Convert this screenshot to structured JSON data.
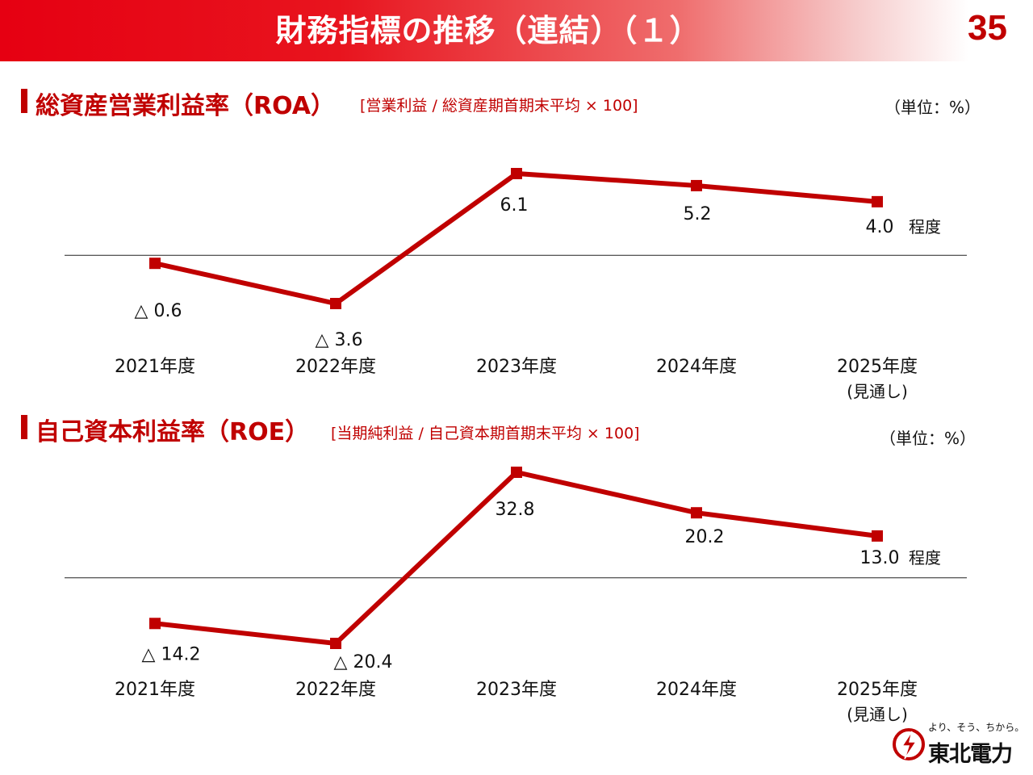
{
  "header": {
    "title": "財務指標の推移（連結）（１）",
    "page_number": "35"
  },
  "colors": {
    "accent": "#c00000",
    "title_bar": "#e60012",
    "line": "#c00000"
  },
  "roa": {
    "title": "総資産営業利益率（ROA）",
    "formula": "[営業利益 / 総資産期首期末平均 × 100]",
    "unit": "（単位：%）"
  },
  "roe": {
    "title": "自己資本利益率（ROE）",
    "formula": "[当期純利益 / 自己資本期首期末平均 × 100]",
    "unit": "（単位：%）"
  },
  "logo": {
    "tagline": "より、そう、ちから。",
    "name": "東北電力",
    "icon": "tohoku-electric-logo-icon"
  },
  "chart_data": [
    {
      "type": "line",
      "title": "総資産営業利益率（ROA）",
      "categories": [
        "2021年度",
        "2022年度",
        "2023年度",
        "2024年度",
        "2025年度"
      ],
      "category_notes": [
        "",
        "",
        "",
        "",
        "(見通し)"
      ],
      "values": [
        -0.6,
        -3.6,
        6.1,
        5.2,
        4.0
      ],
      "value_labels": [
        "△ 0.6",
        "△ 3.6",
        "6.1",
        "5.2",
        "4.0"
      ],
      "value_suffixes": [
        "",
        "",
        "",
        "",
        "程度"
      ],
      "ylim": [
        -3.6,
        6.1
      ],
      "zero_line": true,
      "xlabel": "",
      "ylabel": ""
    },
    {
      "type": "line",
      "title": "自己資本利益率（ROE）",
      "categories": [
        "2021年度",
        "2022年度",
        "2023年度",
        "2024年度",
        "2025年度"
      ],
      "category_notes": [
        "",
        "",
        "",
        "",
        "(見通し)"
      ],
      "values": [
        -14.2,
        -20.4,
        32.8,
        20.2,
        13.0
      ],
      "value_labels": [
        "△ 14.2",
        "△ 20.4",
        "32.8",
        "20.2",
        "13.0"
      ],
      "value_suffixes": [
        "",
        "",
        "",
        "",
        "程度"
      ],
      "ylim": [
        -20.4,
        32.8
      ],
      "zero_line": true,
      "xlabel": "",
      "ylabel": ""
    }
  ]
}
